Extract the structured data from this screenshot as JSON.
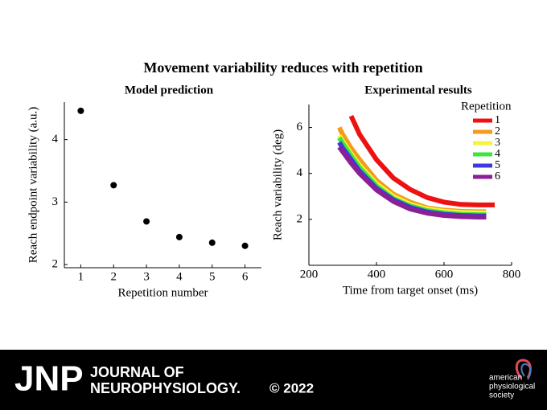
{
  "title": "Movement variability reduces with repetition",
  "chart_data": [
    {
      "type": "scatter",
      "title": "Model prediction",
      "x_label": "Repetition number",
      "y_label": "Reach endpoint variability (a.u.)",
      "x": [
        1,
        2,
        3,
        4,
        5,
        6
      ],
      "values": [
        4.46,
        3.27,
        2.69,
        2.44,
        2.35,
        2.3
      ],
      "color": "#000000",
      "xlim": [
        0.5,
        6.5
      ],
      "ylim": [
        1.95,
        4.6
      ],
      "xticks": [
        1,
        2,
        3,
        4,
        5,
        6
      ],
      "yticks": [
        2,
        3,
        4
      ]
    },
    {
      "type": "line",
      "title": "Experimental results",
      "x_label": "Time from target onset (ms)",
      "y_label": "Reach  variability (deg)",
      "legend_title": "Repetition",
      "legend": "upper right",
      "x": [
        290,
        300,
        325,
        350,
        400,
        450,
        500,
        550,
        600,
        650,
        700,
        725,
        750
      ],
      "series": [
        {
          "name": "1",
          "color": "#ee1111",
          "values": [
            null,
            null,
            6.5,
            5.7,
            4.6,
            3.8,
            3.3,
            2.95,
            2.75,
            2.65,
            2.63,
            2.63,
            2.63
          ]
        },
        {
          "name": "2",
          "color": "#f59a1b",
          "values": [
            6.0,
            5.7,
            5.1,
            4.6,
            3.7,
            3.1,
            2.75,
            2.5,
            2.4,
            2.35,
            2.33,
            2.33,
            null
          ]
        },
        {
          "name": "3",
          "color": "#f4f43a",
          "values": [
            5.65,
            5.4,
            4.85,
            4.35,
            3.55,
            3.0,
            2.65,
            2.45,
            2.35,
            2.3,
            2.28,
            2.28,
            null
          ]
        },
        {
          "name": "4",
          "color": "#3ce63c",
          "values": [
            5.55,
            5.3,
            4.75,
            4.25,
            3.45,
            2.9,
            2.58,
            2.38,
            2.28,
            2.22,
            2.2,
            2.2,
            null
          ]
        },
        {
          "name": "5",
          "color": "#3a3ae0",
          "values": [
            5.35,
            5.1,
            4.6,
            4.1,
            3.35,
            2.85,
            2.52,
            2.32,
            2.22,
            2.17,
            2.15,
            2.15,
            null
          ]
        },
        {
          "name": "6",
          "color": "#8a1f96",
          "values": [
            5.15,
            4.95,
            4.45,
            4.0,
            3.28,
            2.78,
            2.45,
            2.27,
            2.17,
            2.12,
            2.1,
            2.1,
            null
          ]
        }
      ],
      "xlim": [
        200,
        800
      ],
      "ylim": [
        0,
        7
      ],
      "xticks": [
        200,
        400,
        600,
        800
      ],
      "yticks": [
        2,
        4,
        6
      ]
    }
  ],
  "footer": {
    "brand": "JNP",
    "journal_line1": "JOURNAL OF",
    "journal_line2": "NEUROPHYSIOLOGY.",
    "year": "© 2022",
    "society": [
      "american",
      "physiological",
      "society"
    ]
  }
}
